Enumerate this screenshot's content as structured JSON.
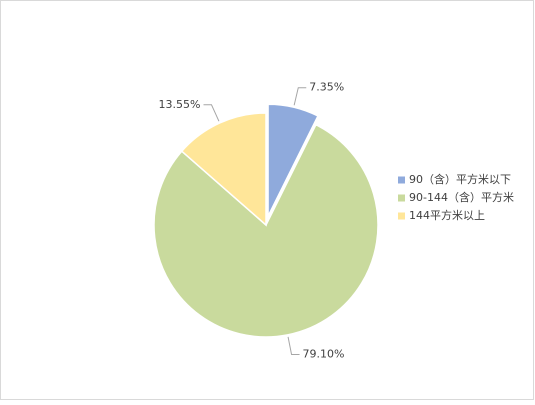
{
  "chart_data": {
    "type": "pie",
    "categories": [
      "90（含）平方米以下",
      "90-144（含）平方米",
      "144平方米以上"
    ],
    "values": [
      7.35,
      79.1,
      13.55
    ],
    "value_labels": [
      "7.35%",
      "79.10%",
      "13.55%"
    ],
    "colors": [
      "#8faadc",
      "#c9da9d",
      "#ffe699"
    ],
    "exploded": [
      0
    ],
    "legend": "right"
  }
}
